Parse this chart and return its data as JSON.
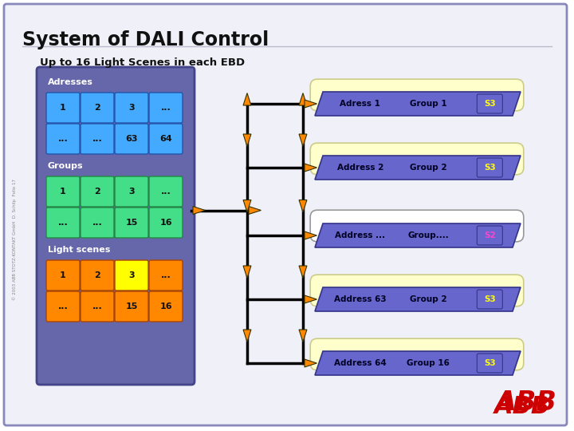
{
  "title": "System of DALI Control",
  "subtitle": "Up to 16 Light Scenes in each EBD",
  "bg_color": "#ffffff",
  "border_color": "#8888bb",
  "panel_bg": "#6666aa",
  "panel_border": "#444488",
  "addr_cell_bg": "#44aaff",
  "addr_cell_border": "#2255aa",
  "group_cell_bg": "#44dd88",
  "group_cell_border": "#228844",
  "scene_cell_bg": "#ff8800",
  "scene_cell_bg_yellow": "#ffff00",
  "scene_cell_border": "#aa4400",
  "arrow_color": "#ff8800",
  "line_color": "#000000",
  "ebd_bar_bg": "#6666cc",
  "ebd_bar_border": "#333388",
  "ebd_text_color": "#000022",
  "pill_yellow_bg": "#ffffcc",
  "pill_yellow_border": "#cccc88",
  "pill_white_bg": "#ffffff",
  "pill_white_border": "#999999",
  "s3_color": "#ffff00",
  "s2_color": "#ff44cc",
  "abb_red": "#cc0000",
  "rows": [
    {
      "pill_color": "yellow",
      "bar_text": "Adress 1",
      "group_text": "Group 1",
      "scene_text": "S3",
      "scene_color": "s3"
    },
    {
      "pill_color": "yellow",
      "bar_text": "Address 2",
      "group_text": "Group 2",
      "scene_text": "S3",
      "scene_color": "s3"
    },
    {
      "pill_color": "white",
      "bar_text": "Address ...",
      "group_text": "Group....",
      "scene_text": "S2",
      "scene_color": "s2"
    },
    {
      "pill_color": "yellow",
      "bar_text": "Address 63",
      "group_text": "Group 2",
      "scene_text": "S3",
      "scene_color": "s3"
    },
    {
      "pill_color": "yellow",
      "bar_text": "Address 64",
      "group_text": "Group 16",
      "scene_text": "S3",
      "scene_color": "s3"
    }
  ]
}
